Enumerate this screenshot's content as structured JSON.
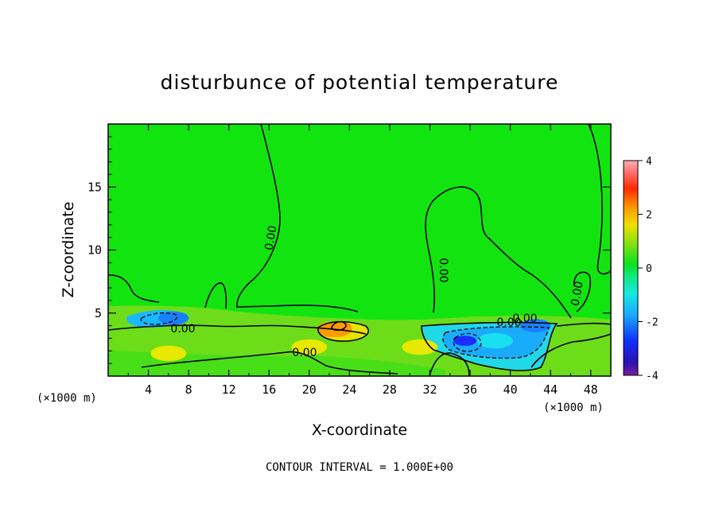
{
  "chart_data": {
    "type": "heatmap",
    "title": "disturbunce of potential temperature",
    "xlabel": "X-coordinate",
    "ylabel": "Z-coordinate",
    "x_unit": "(×1000 m)",
    "xlim": [
      0,
      50
    ],
    "ylim": [
      0,
      20
    ],
    "x_ticks": [
      "4",
      "8",
      "12",
      "16",
      "20",
      "24",
      "28",
      "32",
      "36",
      "40",
      "44",
      "48"
    ],
    "y_ticks": [
      "5",
      "10",
      "15"
    ],
    "colorbar": {
      "range": [
        -4,
        4
      ],
      "ticks": [
        "4",
        "2",
        "0",
        "-2",
        "-4"
      ]
    },
    "contour_labels": [
      "0.00",
      "0.00",
      "0.00",
      "0.00",
      "0.00",
      "0.00",
      "0.00"
    ],
    "contour_interval": "CONTOUR INTERVAL = 1.000E+00",
    "features": [
      {
        "x": 23,
        "z": 3.9,
        "value": 3.2
      },
      {
        "x": 22.5,
        "z": 3.7,
        "value": 1.5
      },
      {
        "x": 31,
        "z": 2.3,
        "value": 1.2
      },
      {
        "x": 35.5,
        "z": 2.8,
        "value": -3.0
      },
      {
        "x": 38.5,
        "z": 2.8,
        "value": -1.5
      },
      {
        "x": 6.5,
        "z": 4.6,
        "value": -2.0
      },
      {
        "x": 42.5,
        "z": 4.0,
        "value": -2.2
      },
      {
        "x": 6,
        "z": 1.8,
        "value": 0.7
      },
      {
        "x": 20,
        "z": 2.3,
        "value": 0.6
      }
    ],
    "grid": false,
    "legend": "colorbar-right"
  }
}
